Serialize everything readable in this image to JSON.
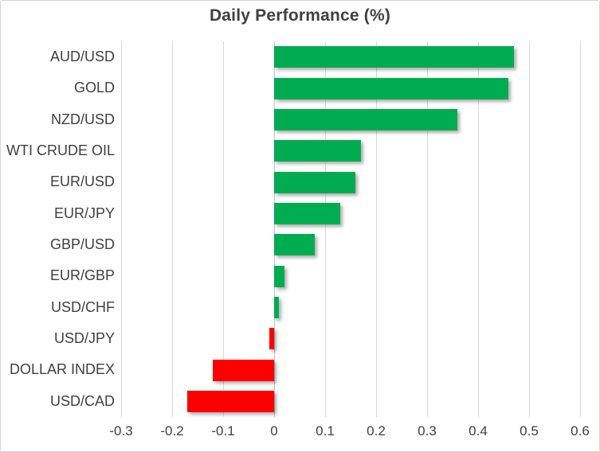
{
  "chart_data": {
    "type": "bar",
    "orientation": "horizontal",
    "title": "Daily Performance (%)",
    "categories": [
      "AUD/USD",
      "GOLD",
      "NZD/USD",
      "WTI CRUDE OIL",
      "EUR/USD",
      "EUR/JPY",
      "GBP/USD",
      "EUR/GBP",
      "USD/CHF",
      "USD/JPY",
      "DOLLAR INDEX",
      "USD/CAD"
    ],
    "values": [
      0.47,
      0.46,
      0.36,
      0.17,
      0.16,
      0.13,
      0.08,
      0.02,
      0.01,
      -0.01,
      -0.12,
      -0.17
    ],
    "xlim": [
      -0.3,
      0.6
    ],
    "ticks": [
      {
        "value": -0.3,
        "label": "-0.3"
      },
      {
        "value": -0.2,
        "label": "-0.2"
      },
      {
        "value": -0.1,
        "label": "-0.1"
      },
      {
        "value": 0,
        "label": "0"
      },
      {
        "value": 0.1,
        "label": "0.1"
      },
      {
        "value": 0.2,
        "label": "0.2"
      },
      {
        "value": 0.3,
        "label": "0.3"
      },
      {
        "value": 0.4,
        "label": "0.4"
      },
      {
        "value": 0.5,
        "label": "0.5"
      },
      {
        "value": 0.6,
        "label": "0.6"
      }
    ],
    "grid": "vertical",
    "legend_position": "none",
    "colors": {
      "positive": "#00AC4F",
      "negative": "#FF0000",
      "gridline": "#D9D9D9",
      "zero_axis": "#C3C3C3",
      "text": "#404040"
    }
  }
}
